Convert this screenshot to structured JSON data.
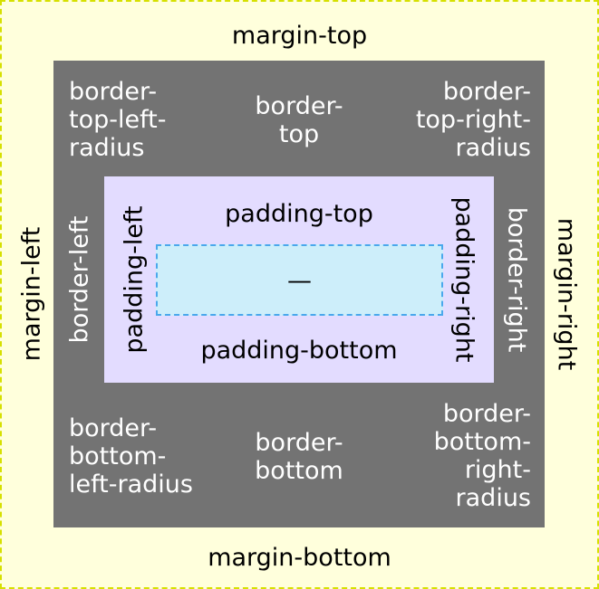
{
  "margin": {
    "top": "margin-top",
    "bottom": "margin-bottom",
    "left": "margin-left",
    "right": "margin-right"
  },
  "border": {
    "top_left_radius": "border-\ntop-left-\nradius",
    "top": "border-\ntop",
    "top_right_radius": "border-\ntop-right-\nradius",
    "left": "border-left",
    "right": "border-right",
    "bottom_left_radius": "border-\nbottom-\nleft-radius",
    "bottom": "border-\nbottom",
    "bottom_right_radius": "border-\nbottom-\nright-\nradius"
  },
  "padding": {
    "top": "padding-top",
    "bottom": "padding-bottom",
    "left": "padding-left",
    "right": "padding-right"
  },
  "content": {
    "label": "—"
  },
  "colors": {
    "margin_bg": "#ffffdc",
    "margin_border": "#d6e000",
    "border_bg": "#737373",
    "padding_bg": "#e3dcff",
    "content_bg": "#cdeefa",
    "content_border": "#4aa8ec"
  }
}
